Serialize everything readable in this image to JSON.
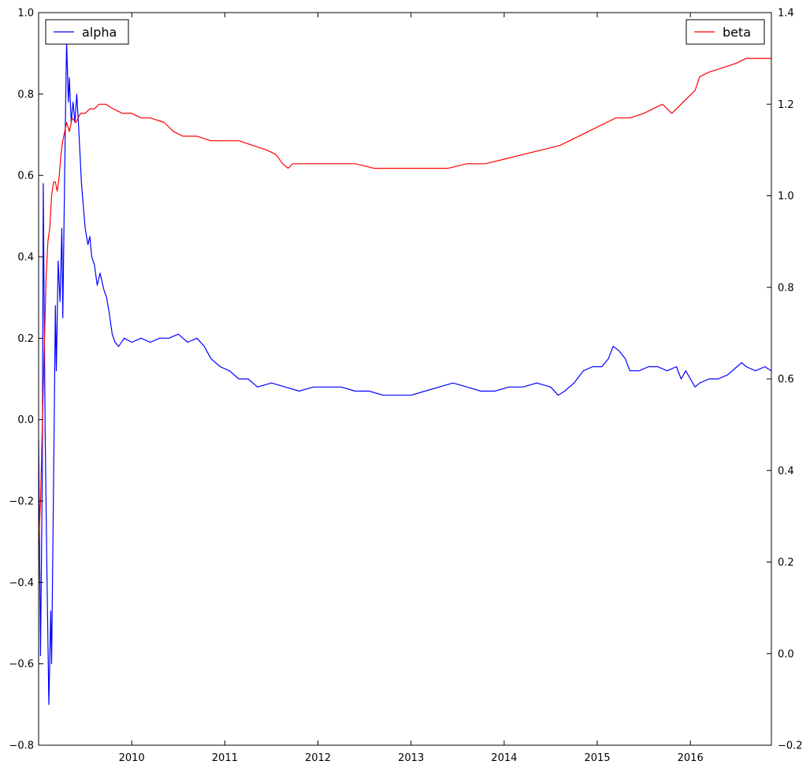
{
  "chart_data": {
    "type": "line",
    "title": "",
    "xlabel": "",
    "ylabel_left": "",
    "ylabel_right": "",
    "grid": false,
    "x_axis": {
      "range": [
        2009.0,
        2016.87
      ],
      "ticks": [
        "2010",
        "2011",
        "2012",
        "2013",
        "2014",
        "2015",
        "2016"
      ]
    },
    "y_left": {
      "range": [
        -0.8,
        1.0
      ],
      "ticks": [
        "−0.8",
        "−0.6",
        "−0.4",
        "−0.2",
        "0.0",
        "0.2",
        "0.4",
        "0.6",
        "0.8",
        "1.0"
      ]
    },
    "y_right": {
      "range": [
        -0.2,
        1.4
      ],
      "ticks": [
        "−0.2",
        "0.0",
        "0.2",
        "0.4",
        "0.6",
        "0.8",
        "1.0",
        "1.2",
        "1.4"
      ]
    },
    "legends": [
      {
        "placement": "top-left",
        "series": "alpha",
        "label": "alpha"
      },
      {
        "placement": "top-right",
        "series": "beta",
        "label": "beta"
      }
    ],
    "series": [
      {
        "name": "alpha",
        "axis": "left",
        "color": "#0000ff",
        "points": [
          [
            2009.0,
            -0.05
          ],
          [
            2009.02,
            -0.58
          ],
          [
            2009.04,
            -0.13
          ],
          [
            2009.05,
            0.58
          ],
          [
            2009.07,
            -0.03
          ],
          [
            2009.09,
            -0.38
          ],
          [
            2009.11,
            -0.7
          ],
          [
            2009.13,
            -0.47
          ],
          [
            2009.14,
            -0.6
          ],
          [
            2009.16,
            -0.17
          ],
          [
            2009.18,
            0.28
          ],
          [
            2009.19,
            0.12
          ],
          [
            2009.21,
            0.39
          ],
          [
            2009.23,
            0.29
          ],
          [
            2009.25,
            0.47
          ],
          [
            2009.26,
            0.25
          ],
          [
            2009.28,
            0.61
          ],
          [
            2009.3,
            0.93
          ],
          [
            2009.32,
            0.78
          ],
          [
            2009.33,
            0.84
          ],
          [
            2009.35,
            0.73
          ],
          [
            2009.37,
            0.78
          ],
          [
            2009.39,
            0.73
          ],
          [
            2009.41,
            0.8
          ],
          [
            2009.43,
            0.72
          ],
          [
            2009.46,
            0.58
          ],
          [
            2009.5,
            0.47
          ],
          [
            2009.53,
            0.43
          ],
          [
            2009.55,
            0.45
          ],
          [
            2009.57,
            0.4
          ],
          [
            2009.6,
            0.38
          ],
          [
            2009.63,
            0.33
          ],
          [
            2009.66,
            0.36
          ],
          [
            2009.7,
            0.32
          ],
          [
            2009.73,
            0.3
          ],
          [
            2009.76,
            0.26
          ],
          [
            2009.79,
            0.21
          ],
          [
            2009.82,
            0.19
          ],
          [
            2009.86,
            0.18
          ],
          [
            2009.92,
            0.2
          ],
          [
            2010.0,
            0.19
          ],
          [
            2010.1,
            0.2
          ],
          [
            2010.2,
            0.19
          ],
          [
            2010.3,
            0.2
          ],
          [
            2010.4,
            0.2
          ],
          [
            2010.5,
            0.21
          ],
          [
            2010.6,
            0.19
          ],
          [
            2010.7,
            0.2
          ],
          [
            2010.78,
            0.18
          ],
          [
            2010.85,
            0.15
          ],
          [
            2010.95,
            0.13
          ],
          [
            2011.05,
            0.12
          ],
          [
            2011.15,
            0.1
          ],
          [
            2011.25,
            0.1
          ],
          [
            2011.35,
            0.08
          ],
          [
            2011.5,
            0.09
          ],
          [
            2011.65,
            0.08
          ],
          [
            2011.8,
            0.07
          ],
          [
            2011.95,
            0.08
          ],
          [
            2012.1,
            0.08
          ],
          [
            2012.25,
            0.08
          ],
          [
            2012.4,
            0.07
          ],
          [
            2012.55,
            0.07
          ],
          [
            2012.7,
            0.06
          ],
          [
            2012.85,
            0.06
          ],
          [
            2013.0,
            0.06
          ],
          [
            2013.15,
            0.07
          ],
          [
            2013.3,
            0.08
          ],
          [
            2013.45,
            0.09
          ],
          [
            2013.6,
            0.08
          ],
          [
            2013.75,
            0.07
          ],
          [
            2013.9,
            0.07
          ],
          [
            2014.05,
            0.08
          ],
          [
            2014.2,
            0.08
          ],
          [
            2014.35,
            0.09
          ],
          [
            2014.5,
            0.08
          ],
          [
            2014.58,
            0.06
          ],
          [
            2014.65,
            0.07
          ],
          [
            2014.75,
            0.09
          ],
          [
            2014.85,
            0.12
          ],
          [
            2014.95,
            0.13
          ],
          [
            2015.05,
            0.13
          ],
          [
            2015.12,
            0.15
          ],
          [
            2015.17,
            0.18
          ],
          [
            2015.23,
            0.17
          ],
          [
            2015.3,
            0.15
          ],
          [
            2015.35,
            0.12
          ],
          [
            2015.45,
            0.12
          ],
          [
            2015.55,
            0.13
          ],
          [
            2015.65,
            0.13
          ],
          [
            2015.75,
            0.12
          ],
          [
            2015.85,
            0.13
          ],
          [
            2015.9,
            0.1
          ],
          [
            2015.95,
            0.12
          ],
          [
            2016.0,
            0.1
          ],
          [
            2016.05,
            0.08
          ],
          [
            2016.1,
            0.09
          ],
          [
            2016.2,
            0.1
          ],
          [
            2016.3,
            0.1
          ],
          [
            2016.4,
            0.11
          ],
          [
            2016.5,
            0.13
          ],
          [
            2016.55,
            0.14
          ],
          [
            2016.6,
            0.13
          ],
          [
            2016.7,
            0.12
          ],
          [
            2016.8,
            0.13
          ],
          [
            2016.87,
            0.12
          ]
        ]
      },
      {
        "name": "beta",
        "axis": "right",
        "color": "#ff0000",
        "points": [
          [
            2009.0,
            0.24
          ],
          [
            2009.02,
            0.33
          ],
          [
            2009.04,
            0.5
          ],
          [
            2009.06,
            0.66
          ],
          [
            2009.08,
            0.82
          ],
          [
            2009.1,
            0.9
          ],
          [
            2009.12,
            0.93
          ],
          [
            2009.14,
            1.0
          ],
          [
            2009.16,
            1.03
          ],
          [
            2009.18,
            1.03
          ],
          [
            2009.2,
            1.01
          ],
          [
            2009.22,
            1.04
          ],
          [
            2009.24,
            1.09
          ],
          [
            2009.26,
            1.12
          ],
          [
            2009.28,
            1.14
          ],
          [
            2009.3,
            1.16
          ],
          [
            2009.33,
            1.14
          ],
          [
            2009.36,
            1.17
          ],
          [
            2009.4,
            1.16
          ],
          [
            2009.45,
            1.18
          ],
          [
            2009.5,
            1.18
          ],
          [
            2009.55,
            1.19
          ],
          [
            2009.6,
            1.19
          ],
          [
            2009.65,
            1.2
          ],
          [
            2009.72,
            1.2
          ],
          [
            2009.8,
            1.19
          ],
          [
            2009.9,
            1.18
          ],
          [
            2010.0,
            1.18
          ],
          [
            2010.1,
            1.17
          ],
          [
            2010.2,
            1.17
          ],
          [
            2010.35,
            1.16
          ],
          [
            2010.45,
            1.14
          ],
          [
            2010.55,
            1.13
          ],
          [
            2010.7,
            1.13
          ],
          [
            2010.85,
            1.12
          ],
          [
            2011.0,
            1.12
          ],
          [
            2011.15,
            1.12
          ],
          [
            2011.3,
            1.11
          ],
          [
            2011.45,
            1.1
          ],
          [
            2011.55,
            1.09
          ],
          [
            2011.62,
            1.07
          ],
          [
            2011.68,
            1.06
          ],
          [
            2011.73,
            1.07
          ],
          [
            2011.8,
            1.07
          ],
          [
            2011.9,
            1.07
          ],
          [
            2012.0,
            1.07
          ],
          [
            2012.2,
            1.07
          ],
          [
            2012.4,
            1.07
          ],
          [
            2012.6,
            1.06
          ],
          [
            2012.8,
            1.06
          ],
          [
            2013.0,
            1.06
          ],
          [
            2013.2,
            1.06
          ],
          [
            2013.4,
            1.06
          ],
          [
            2013.6,
            1.07
          ],
          [
            2013.8,
            1.07
          ],
          [
            2014.0,
            1.08
          ],
          [
            2014.2,
            1.09
          ],
          [
            2014.4,
            1.1
          ],
          [
            2014.6,
            1.11
          ],
          [
            2014.8,
            1.13
          ],
          [
            2015.0,
            1.15
          ],
          [
            2015.1,
            1.16
          ],
          [
            2015.2,
            1.17
          ],
          [
            2015.35,
            1.17
          ],
          [
            2015.5,
            1.18
          ],
          [
            2015.6,
            1.19
          ],
          [
            2015.7,
            1.2
          ],
          [
            2015.8,
            1.18
          ],
          [
            2015.9,
            1.2
          ],
          [
            2016.0,
            1.22
          ],
          [
            2016.05,
            1.23
          ],
          [
            2016.1,
            1.26
          ],
          [
            2016.2,
            1.27
          ],
          [
            2016.35,
            1.28
          ],
          [
            2016.5,
            1.29
          ],
          [
            2016.6,
            1.3
          ],
          [
            2016.75,
            1.3
          ],
          [
            2016.87,
            1.3
          ]
        ]
      }
    ]
  }
}
